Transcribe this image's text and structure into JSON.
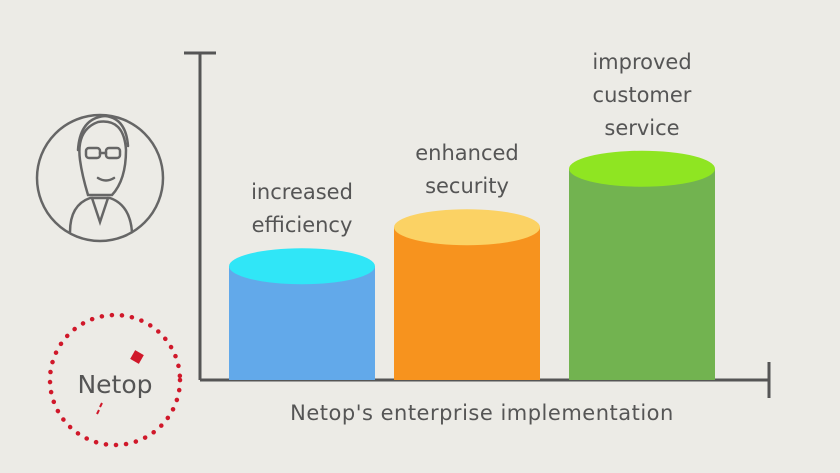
{
  "chart_data": {
    "type": "bar",
    "categories": [
      "increased efficiency",
      "enhanced security",
      "improved customer service"
    ],
    "values": [
      35,
      47,
      65
    ],
    "colors": [
      "#62a9ea",
      "#f7931e",
      "#72b350"
    ],
    "top_colors": [
      "#30e6f7",
      "#fbd264",
      "#8fe522"
    ],
    "ylim": [
      0,
      100
    ],
    "x_label": "Netop's enterprise implementation"
  },
  "logo": {
    "text": "Netop"
  }
}
